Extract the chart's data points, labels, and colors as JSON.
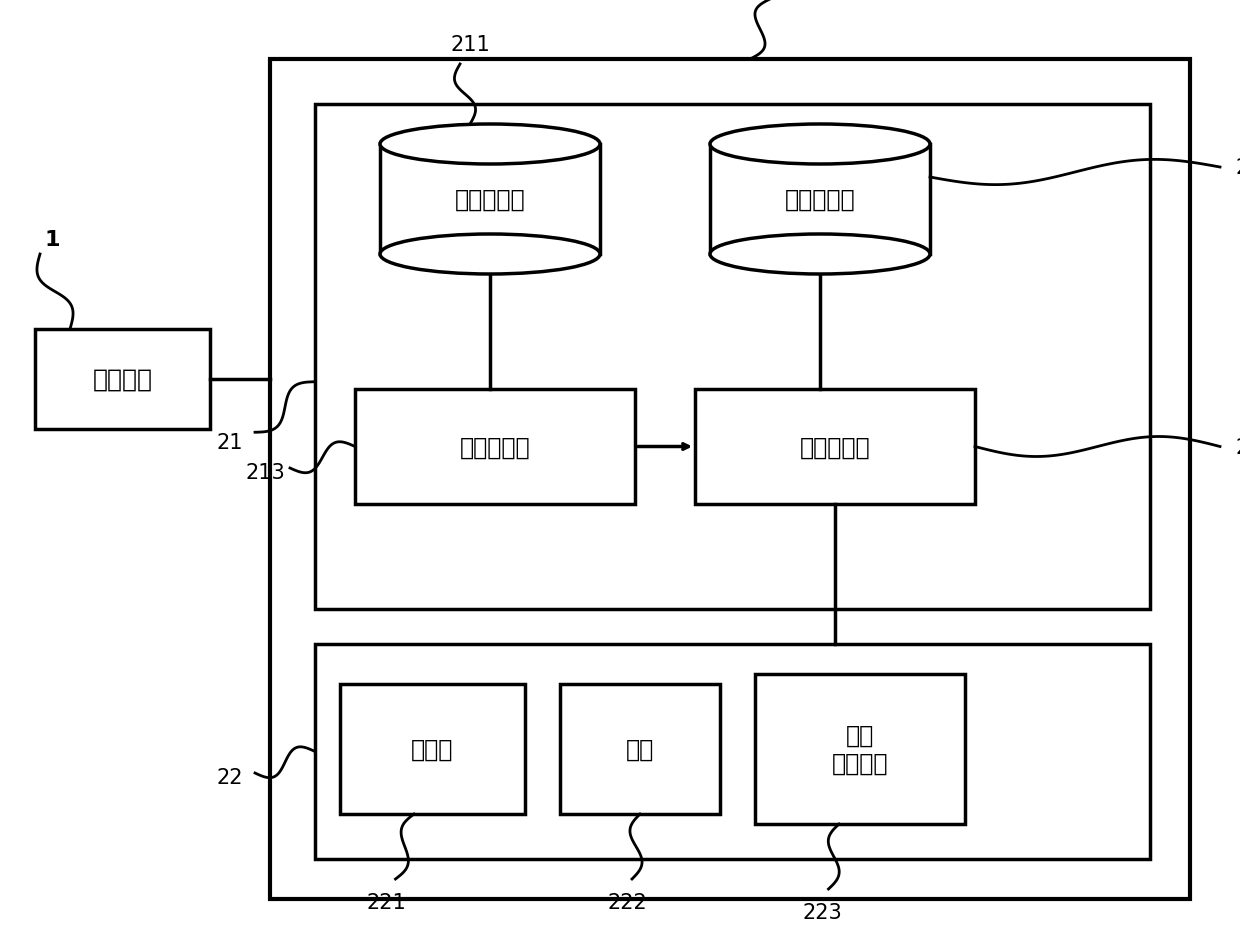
{
  "bg_color": "#ffffff",
  "line_color": "#000000",
  "font_size_label": 17,
  "font_size_ref": 14,
  "labels": {
    "host": "主机装置",
    "buffer": "接收缓冲器",
    "storage": "数据存储部",
    "print_ctrl": "印刷控制部",
    "drive_ctrl": "驱动控制部",
    "print_head": "印刷头",
    "carriage": "滑架",
    "paper_feed": "纸张\n输送机构"
  }
}
